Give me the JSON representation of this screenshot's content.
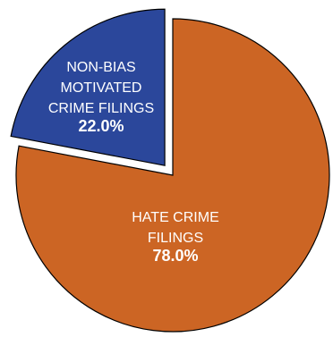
{
  "chart_data": {
    "type": "pie",
    "slices": [
      {
        "label_lines": [
          "HATE CRIME",
          "FILINGS"
        ],
        "value": 78.0,
        "value_label": "78.0%",
        "color": "#CC6524",
        "exploded": false
      },
      {
        "label_lines": [
          "NON-BIAS",
          "MOTIVATED",
          "CRIME FILINGS"
        ],
        "value": 22.0,
        "value_label": "22.0%",
        "color": "#2B479B",
        "exploded": true
      }
    ],
    "start_angle_degrees": 0,
    "direction": "clockwise",
    "slice_border_color": "#000000"
  }
}
